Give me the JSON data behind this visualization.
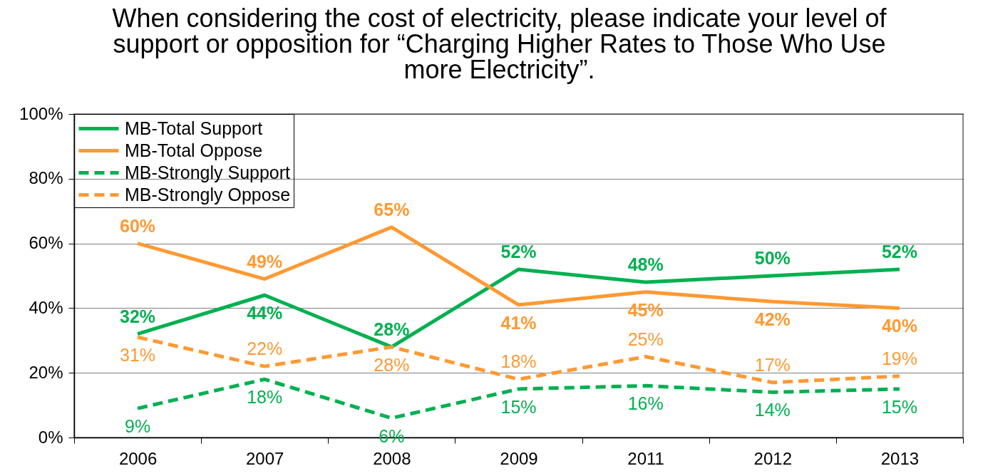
{
  "chart_data": {
    "type": "line",
    "title": "When  considering the cost of electricity, please indicate your level of support or opposition for “Charging Higher Rates to Those Who Use more Electricity”.",
    "categories": [
      "2006",
      "2007",
      "2008",
      "2009",
      "2011",
      "2012",
      "2013"
    ],
    "series": [
      {
        "name": "MB-Total Support",
        "color": "#00b050",
        "line_style": "solid",
        "values": [
          32,
          44,
          28,
          52,
          48,
          50,
          52
        ],
        "value_labels": [
          "32%",
          "44%",
          "28%",
          "52%",
          "48%",
          "50%",
          "52%"
        ]
      },
      {
        "name": "MB-Total Oppose",
        "color": "#ff9933",
        "line_style": "solid",
        "values": [
          60,
          49,
          65,
          41,
          45,
          42,
          40
        ],
        "value_labels": [
          "60%",
          "49%",
          "65%",
          "41%",
          "45%",
          "42%",
          "40%"
        ]
      },
      {
        "name": "MB-Strongly Support",
        "color": "#00b050",
        "line_style": "dashed",
        "values": [
          9,
          18,
          6,
          15,
          16,
          14,
          15
        ],
        "value_labels": [
          "9%",
          "18%",
          "6%",
          "15%",
          "16%",
          "14%",
          "15%"
        ]
      },
      {
        "name": "MB-Strongly Oppose",
        "color": "#ff9933",
        "line_style": "dashed",
        "values": [
          31,
          22,
          28,
          18,
          25,
          17,
          19
        ],
        "value_labels": [
          "31%",
          "22%",
          "28%",
          "18%",
          "25%",
          "17%",
          "19%"
        ]
      }
    ],
    "ylim": [
      0,
      100
    ],
    "yticks": [
      {
        "value": 0,
        "label": "0%"
      },
      {
        "value": 20,
        "label": "20%"
      },
      {
        "value": 40,
        "label": "40%"
      },
      {
        "value": 60,
        "label": "60%"
      },
      {
        "value": 80,
        "label": "80%"
      },
      {
        "value": 100,
        "label": "100%"
      }
    ],
    "grid": "y",
    "legend": "top left"
  }
}
